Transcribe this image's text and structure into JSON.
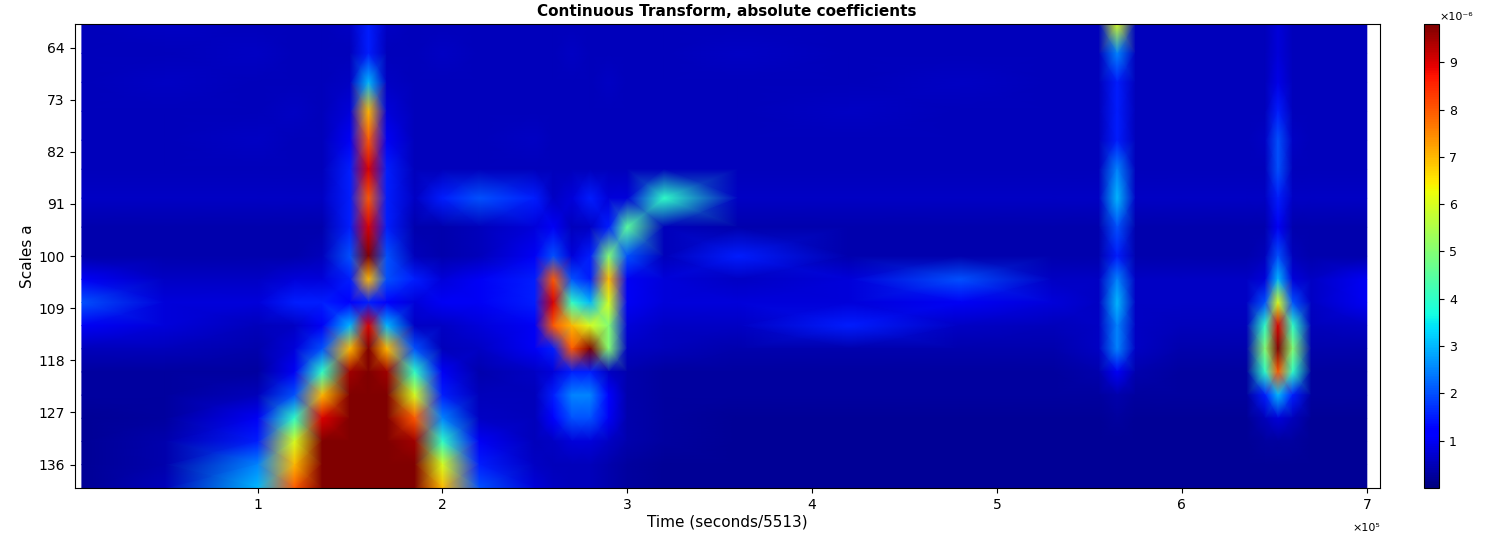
{
  "chart_data": {
    "type": "heatmap",
    "title": "Continuous Transform, absolute coefficients",
    "x_label": "Time (seconds/5513)",
    "y_label": "Scales a",
    "x_unit_label": "×10⁵",
    "xlim": [
      0.01,
      7.07
    ],
    "xticks": [
      1,
      2,
      3,
      4,
      5,
      6,
      7
    ],
    "ylim": [
      140,
      60
    ],
    "yticks": [
      64,
      73,
      82,
      91,
      100,
      109,
      118,
      127,
      136
    ],
    "x": [
      0.05,
      0.5,
      1.0,
      1.2,
      1.35,
      1.5,
      1.6,
      1.7,
      1.85,
      2.0,
      2.2,
      2.5,
      2.6,
      2.7,
      2.8,
      2.9,
      3.0,
      3.2,
      3.6,
      4.2,
      4.8,
      5.3,
      5.55,
      5.65,
      5.75,
      6.0,
      6.35,
      6.45,
      6.52,
      6.6,
      6.7,
      7.0
    ],
    "y": [
      60,
      65,
      70,
      75,
      80,
      85,
      90,
      95,
      100,
      104,
      108,
      112,
      116,
      120,
      124,
      128,
      132,
      136,
      140
    ],
    "cells": [
      [
        0.5,
        0.6,
        0.5,
        0.5,
        0.5,
        0.6,
        1.5,
        0.6,
        0.5,
        0.5,
        0.5,
        0.5,
        0.5,
        0.5,
        0.5,
        0.5,
        0.5,
        0.5,
        0.5,
        0.5,
        0.5,
        0.5,
        0.5,
        6.0,
        0.5,
        0.5,
        0.5,
        0.5,
        0.8,
        0.5,
        0.5,
        0.5
      ],
      [
        0.5,
        0.5,
        0.6,
        0.5,
        0.5,
        0.5,
        1.5,
        0.5,
        0.5,
        0.6,
        0.5,
        0.5,
        0.5,
        0.6,
        0.5,
        0.5,
        0.5,
        0.5,
        0.6,
        0.5,
        0.5,
        0.5,
        0.5,
        2.5,
        0.5,
        0.5,
        0.5,
        0.5,
        0.8,
        0.5,
        0.5,
        0.5
      ],
      [
        0.5,
        0.6,
        0.5,
        0.5,
        0.5,
        0.6,
        3.0,
        0.6,
        0.5,
        0.5,
        0.5,
        0.5,
        0.5,
        0.5,
        0.5,
        0.6,
        0.5,
        0.5,
        0.5,
        0.5,
        0.6,
        0.5,
        0.5,
        1.5,
        0.5,
        0.5,
        0.5,
        0.5,
        0.9,
        0.5,
        0.5,
        0.5
      ],
      [
        0.5,
        0.5,
        0.5,
        0.6,
        0.5,
        0.8,
        7.0,
        0.8,
        0.5,
        0.5,
        0.5,
        0.5,
        0.5,
        0.5,
        0.5,
        0.5,
        0.5,
        0.5,
        0.5,
        0.6,
        0.5,
        0.5,
        0.5,
        1.5,
        0.5,
        0.5,
        0.5,
        0.5,
        1.5,
        0.5,
        0.5,
        0.5
      ],
      [
        0.5,
        0.5,
        0.6,
        0.5,
        0.5,
        1.0,
        8.0,
        1.0,
        0.5,
        0.5,
        0.5,
        0.6,
        0.5,
        0.5,
        0.5,
        0.5,
        0.5,
        0.5,
        0.5,
        0.5,
        0.5,
        0.5,
        0.5,
        1.5,
        0.5,
        0.5,
        0.5,
        0.6,
        2.0,
        0.6,
        0.5,
        0.5
      ],
      [
        0.5,
        0.5,
        0.5,
        0.5,
        0.5,
        1.5,
        9.0,
        1.5,
        0.5,
        0.5,
        0.5,
        0.5,
        0.5,
        0.5,
        0.5,
        0.5,
        0.5,
        0.5,
        0.5,
        0.5,
        0.5,
        0.5,
        0.5,
        2.5,
        0.5,
        0.5,
        0.5,
        0.5,
        2.0,
        0.5,
        0.5,
        0.5
      ],
      [
        0.6,
        0.6,
        0.6,
        0.6,
        0.6,
        1.5,
        8.0,
        1.5,
        0.6,
        1.5,
        2.0,
        1.5,
        0.6,
        0.8,
        1.5,
        0.8,
        0.8,
        4.0,
        0.6,
        0.6,
        0.6,
        0.6,
        0.6,
        3.0,
        0.6,
        0.6,
        0.6,
        0.6,
        1.5,
        0.6,
        0.6,
        0.6
      ],
      [
        0.4,
        0.4,
        0.4,
        0.4,
        0.4,
        1.5,
        9.0,
        1.5,
        0.4,
        0.4,
        0.5,
        0.8,
        1.0,
        0.5,
        0.6,
        1.5,
        4.5,
        0.5,
        0.4,
        0.4,
        0.4,
        0.4,
        0.4,
        2.0,
        0.4,
        0.4,
        0.4,
        0.4,
        1.0,
        0.4,
        0.4,
        0.4
      ],
      [
        0.4,
        0.4,
        0.4,
        0.4,
        0.5,
        2.0,
        9.8,
        2.0,
        0.5,
        0.4,
        0.5,
        1.0,
        2.0,
        0.8,
        1.5,
        5.0,
        2.0,
        0.5,
        1.5,
        0.4,
        0.4,
        0.4,
        0.4,
        1.5,
        0.4,
        0.4,
        0.4,
        0.5,
        2.0,
        0.5,
        0.4,
        0.4
      ],
      [
        1.0,
        0.6,
        0.6,
        0.8,
        0.8,
        1.5,
        7.0,
        2.0,
        1.5,
        0.8,
        1.0,
        1.5,
        8.0,
        2.0,
        1.5,
        7.0,
        1.0,
        0.8,
        0.6,
        0.8,
        2.0,
        0.6,
        0.6,
        2.5,
        0.6,
        0.6,
        0.6,
        0.8,
        3.0,
        0.8,
        0.6,
        1.0
      ],
      [
        2.0,
        0.8,
        0.8,
        1.5,
        1.5,
        1.2,
        1.5,
        1.2,
        0.8,
        1.0,
        1.0,
        1.5,
        9.0,
        4.0,
        3.0,
        6.0,
        1.0,
        0.8,
        0.8,
        0.8,
        1.0,
        0.8,
        0.6,
        3.0,
        0.6,
        0.6,
        0.6,
        2.0,
        6.0,
        2.0,
        0.6,
        1.0
      ],
      [
        1.0,
        0.8,
        0.5,
        0.6,
        1.0,
        3.0,
        9.0,
        3.0,
        0.6,
        0.6,
        0.8,
        1.0,
        8.0,
        7.0,
        6.0,
        5.0,
        0.8,
        0.6,
        0.6,
        1.5,
        0.6,
        0.5,
        0.6,
        2.5,
        0.6,
        0.5,
        0.5,
        4.0,
        9.0,
        4.0,
        0.5,
        0.6
      ],
      [
        0.5,
        0.5,
        0.4,
        0.8,
        2.0,
        7.0,
        9.8,
        7.0,
        2.0,
        0.5,
        0.6,
        1.0,
        1.5,
        8.0,
        9.8,
        5.0,
        0.6,
        0.5,
        0.4,
        0.4,
        0.4,
        0.4,
        0.6,
        2.5,
        0.6,
        0.4,
        0.4,
        5.0,
        9.8,
        5.0,
        0.4,
        0.4
      ],
      [
        0.3,
        0.3,
        0.3,
        1.0,
        4.0,
        9.5,
        9.8,
        9.5,
        4.0,
        1.0,
        0.4,
        0.6,
        0.8,
        1.5,
        1.5,
        0.6,
        0.4,
        0.3,
        0.3,
        0.3,
        0.3,
        0.3,
        0.4,
        1.0,
        0.4,
        0.3,
        0.3,
        4.0,
        8.0,
        4.0,
        0.3,
        0.3
      ],
      [
        0.3,
        0.3,
        0.5,
        2.0,
        7.0,
        9.8,
        9.8,
        9.8,
        6.0,
        1.5,
        0.5,
        0.5,
        1.5,
        2.5,
        2.5,
        1.2,
        0.4,
        0.3,
        0.3,
        0.3,
        0.3,
        0.3,
        0.3,
        0.4,
        0.3,
        0.3,
        0.3,
        1.5,
        3.0,
        1.5,
        0.3,
        0.3
      ],
      [
        0.2,
        0.3,
        1.0,
        4.0,
        9.0,
        9.8,
        9.8,
        9.8,
        8.0,
        2.5,
        0.6,
        0.5,
        1.2,
        2.0,
        2.0,
        1.0,
        0.4,
        0.3,
        0.2,
        0.2,
        0.2,
        0.2,
        0.2,
        0.3,
        0.2,
        0.2,
        0.2,
        0.5,
        0.8,
        0.5,
        0.2,
        0.2
      ],
      [
        0.2,
        0.4,
        1.5,
        6.0,
        9.8,
        9.8,
        9.8,
        9.8,
        9.5,
        4.0,
        1.0,
        0.5,
        0.6,
        0.8,
        0.8,
        0.6,
        0.4,
        0.3,
        0.2,
        0.2,
        0.2,
        0.2,
        0.2,
        0.2,
        0.2,
        0.2,
        0.2,
        0.3,
        0.3,
        0.3,
        0.2,
        0.2
      ],
      [
        0.2,
        0.4,
        2.5,
        7.0,
        9.8,
        9.8,
        9.8,
        9.8,
        9.8,
        6.0,
        1.5,
        0.6,
        0.5,
        0.5,
        0.5,
        0.4,
        0.3,
        0.2,
        0.2,
        0.2,
        0.2,
        0.2,
        0.2,
        0.2,
        0.2,
        0.2,
        0.2,
        0.2,
        0.2,
        0.2,
        0.2,
        0.2
      ],
      [
        0.2,
        0.5,
        3.0,
        8.0,
        9.8,
        9.8,
        9.8,
        9.8,
        9.8,
        7.0,
        2.0,
        0.8,
        0.6,
        0.5,
        0.5,
        0.4,
        0.3,
        0.2,
        0.2,
        0.2,
        0.2,
        0.2,
        0.2,
        0.2,
        0.2,
        0.2,
        0.2,
        0.2,
        0.2,
        0.2,
        0.2,
        0.2
      ]
    ],
    "colorbar": {
      "range": [
        0,
        9.8
      ],
      "ticks": [
        1,
        2,
        3,
        4,
        5,
        6,
        7,
        8,
        9
      ],
      "unit_label": "×10⁻⁶"
    },
    "color": "jet"
  }
}
